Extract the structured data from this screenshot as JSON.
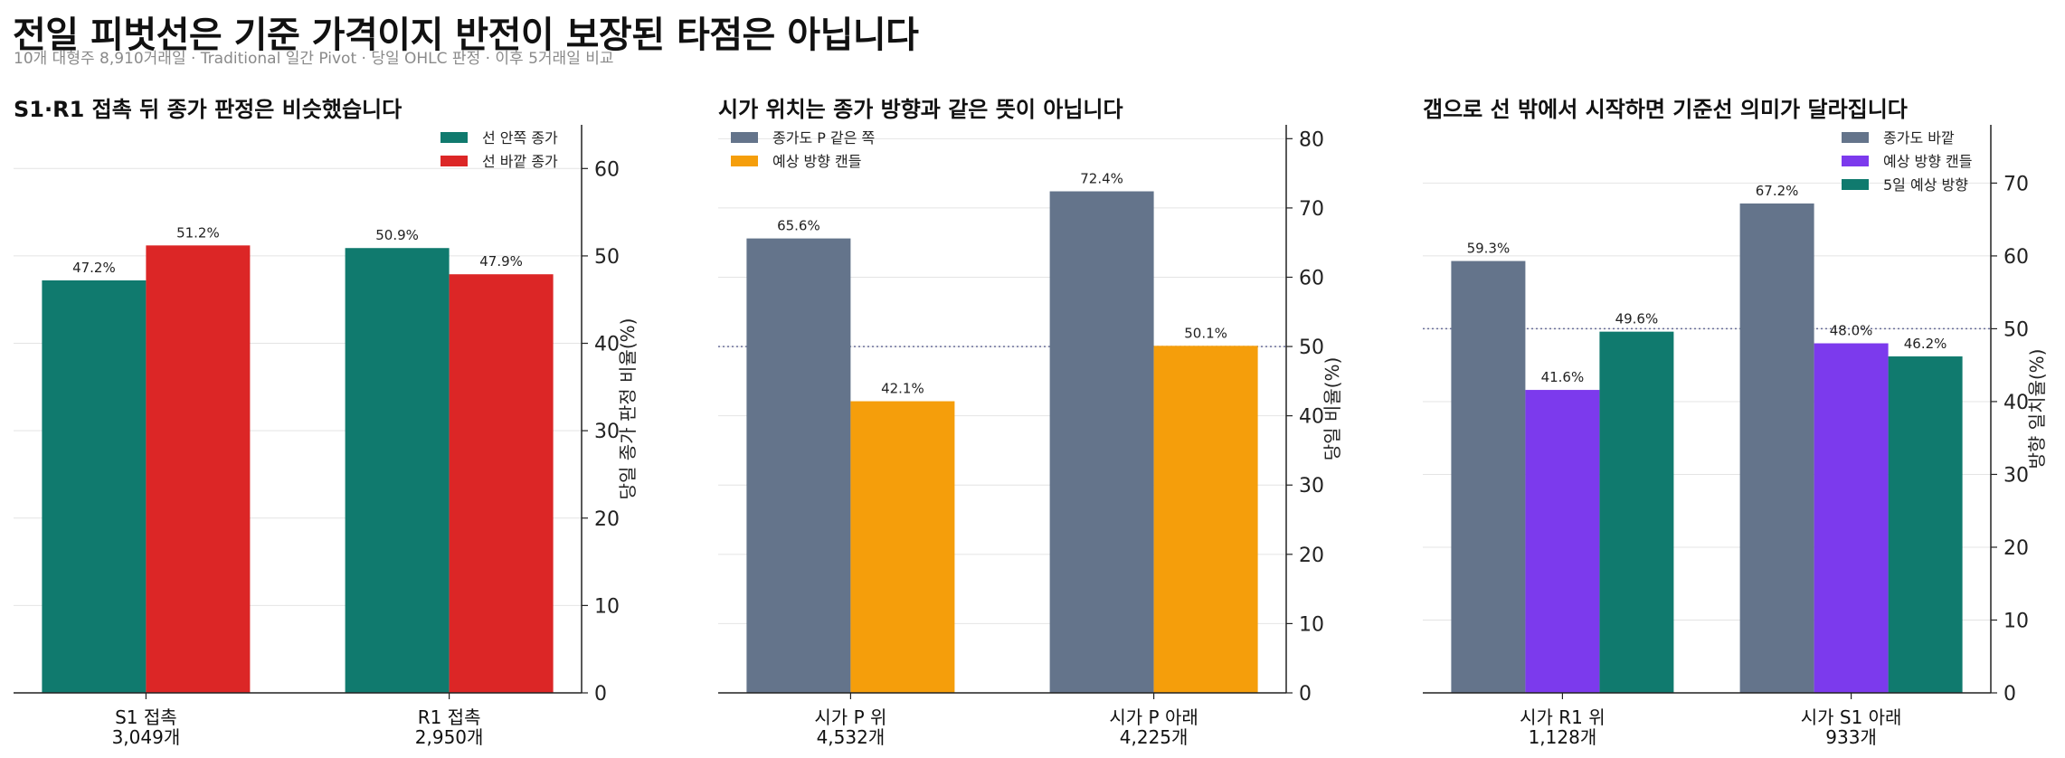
{
  "title": "전일 피벗선은 기준 가격이지 반전이 보장된 타점은 아닙니다",
  "subtitle": "10개 대형주 8,910거래일 · Traditional 일간 Pivot · 당일 OHLC 판정 · 이후 5거래일 비교",
  "colors": {
    "teal": "#107a6e",
    "red": "#dc2626",
    "slate": "#64748b",
    "orange": "#f59e0b",
    "purple": "#7c3aed"
  },
  "chart_data": [
    {
      "type": "bar",
      "title": "S1·R1 접촉 뒤 종가 판정은 비슷했습니다",
      "ylabel": "당일 종가 판정 비율(%)",
      "ylim": [
        0,
        65
      ],
      "yticks": [
        "0",
        "10",
        "20",
        "30",
        "40",
        "50",
        "60"
      ],
      "categories": [
        "S1 접촉",
        "R1 접촉"
      ],
      "category_counts": [
        "3,049개",
        "2,950개"
      ],
      "reference_line": null,
      "legend_position": "top-right",
      "series": [
        {
          "name": "선 안쪽 종가",
          "color": "#107a6e",
          "values": [
            47.2,
            50.9
          ],
          "labels": [
            "47.2%",
            "50.9%"
          ]
        },
        {
          "name": "선 바깥 종가",
          "color": "#dc2626",
          "values": [
            51.2,
            47.9
          ],
          "labels": [
            "51.2%",
            "47.9%"
          ]
        }
      ]
    },
    {
      "type": "bar",
      "title": "시가 위치는 종가 방향과 같은 뜻이 아닙니다",
      "ylabel": "당일 비율(%)",
      "ylim": [
        0,
        82
      ],
      "yticks": [
        "0",
        "10",
        "20",
        "30",
        "40",
        "50",
        "60",
        "70",
        "80"
      ],
      "categories": [
        "시가 P 위",
        "시가 P 아래"
      ],
      "category_counts": [
        "4,532개",
        "4,225개"
      ],
      "reference_line": 50,
      "legend_position": "top-left",
      "series": [
        {
          "name": "종가도 P 같은 쪽",
          "color": "#64748b",
          "values": [
            65.6,
            72.4
          ],
          "labels": [
            "65.6%",
            "72.4%"
          ]
        },
        {
          "name": "예상 방향 캔들",
          "color": "#f59e0b",
          "values": [
            42.1,
            50.1
          ],
          "labels": [
            "42.1%",
            "50.1%"
          ]
        }
      ]
    },
    {
      "type": "bar",
      "title": "갭으로 선 밖에서 시작하면 기준선 의미가 달라집니다",
      "ylabel": "방향 일치율(%)",
      "ylim": [
        0,
        78
      ],
      "yticks": [
        "0",
        "10",
        "20",
        "30",
        "40",
        "50",
        "60",
        "70"
      ],
      "categories": [
        "시가 R1 위",
        "시가 S1 아래"
      ],
      "category_counts": [
        "1,128개",
        "933개"
      ],
      "reference_line": 50,
      "legend_position": "top-right",
      "series": [
        {
          "name": "종가도 바깥",
          "color": "#64748b",
          "values": [
            59.3,
            67.2
          ],
          "labels": [
            "59.3%",
            "67.2%"
          ]
        },
        {
          "name": "예상 방향 캔들",
          "color": "#7c3aed",
          "values": [
            41.6,
            48.0
          ],
          "labels": [
            "41.6%",
            "48.0%"
          ]
        },
        {
          "name": "5일 예상 방향",
          "color": "#107a6e",
          "values": [
            49.6,
            46.2
          ],
          "labels": [
            "49.6%",
            "46.2%"
          ]
        }
      ]
    }
  ]
}
